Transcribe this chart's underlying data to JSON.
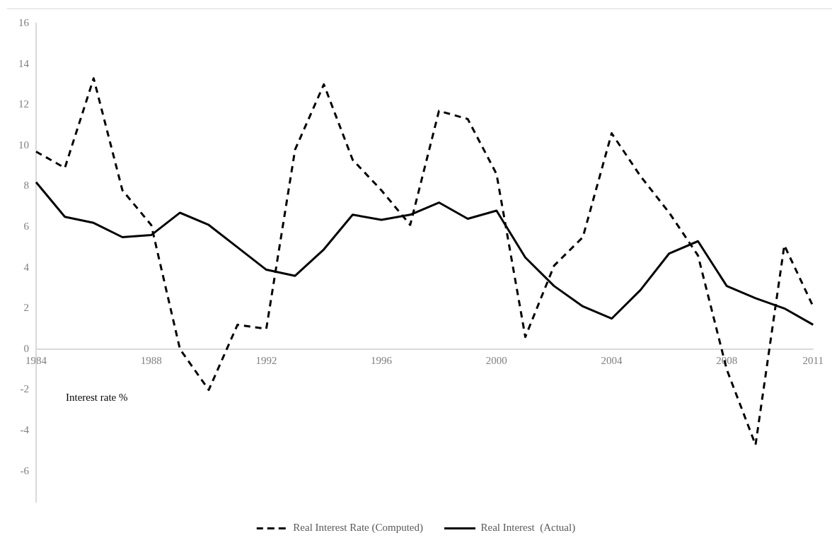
{
  "chart_data": {
    "type": "line",
    "categories": [
      "1984",
      null,
      null,
      null,
      "1988",
      null,
      null,
      null,
      "1992",
      null,
      null,
      null,
      "1996",
      null,
      null,
      null,
      "2000",
      null,
      null,
      null,
      "2004",
      null,
      null,
      null,
      "2008",
      null,
      null,
      "2011"
    ],
    "series": [
      {
        "name": "Real Interest Rate (Computed)",
        "color": "#000000",
        "line_style": "dashed",
        "values": [
          9.7,
          8.9,
          13.3,
          7.8,
          6.1,
          0,
          -2,
          1.2,
          1.0,
          9.8,
          13.0,
          9.3,
          7.8,
          6.1,
          11.7,
          11.3,
          8.6,
          0.6,
          4.1,
          5.5,
          10.6,
          8.5,
          6.7,
          4.6,
          -1.0,
          -4.7,
          5.1,
          2.1
        ]
      },
      {
        "name": "Real Interest  (Actual)",
        "color": "#000000",
        "line_style": "solid",
        "values": [
          8.2,
          6.5,
          6.2,
          5.5,
          5.6,
          6.7,
          6.1,
          5.0,
          3.9,
          3.6,
          4.9,
          6.6,
          6.35,
          6.6,
          7.2,
          6.4,
          6.8,
          4.5,
          3.1,
          2.1,
          1.5,
          2.9,
          4.7,
          5.3,
          3.1,
          2.5,
          2.0,
          1.2
        ]
      }
    ],
    "ylim": [
      -7.5,
      16
    ],
    "yticks": [
      -6,
      -4,
      -2,
      0,
      2,
      4,
      6,
      8,
      10,
      12,
      14,
      16
    ],
    "annotations": [
      "Interest rate %"
    ],
    "legend": "bottom",
    "marker": "none",
    "grid": false
  }
}
